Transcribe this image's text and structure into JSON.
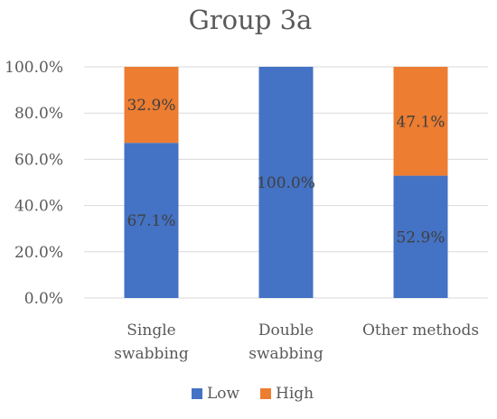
{
  "chart_data": {
    "type": "bar",
    "stacked": true,
    "title": "Group 3a",
    "categories": [
      "Single\nswabbing",
      "Double\nswabbing",
      "Other methods"
    ],
    "series": [
      {
        "name": "Low",
        "values": [
          67.1,
          100.0,
          52.9
        ],
        "labels": [
          "67.1%",
          "100.0%",
          "52.9%"
        ],
        "color": "#4472C4"
      },
      {
        "name": "High",
        "values": [
          32.9,
          0,
          47.1
        ],
        "labels": [
          "32.9%",
          "",
          "47.1%"
        ],
        "color": "#ED7D31"
      }
    ],
    "ylim": [
      0,
      100
    ],
    "yticks": [
      "0.0%",
      "20.0%",
      "40.0%",
      "60.0%",
      "80.0%",
      "100.0%"
    ],
    "grid": true,
    "legend_position": "bottom"
  }
}
